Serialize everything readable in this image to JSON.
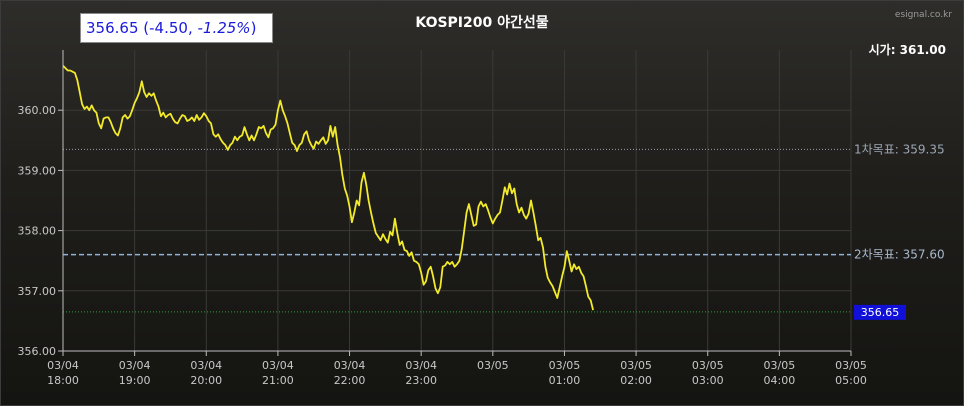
{
  "header": {
    "title": "KOSPI200 야간선물",
    "brand": "esignal.co.kr",
    "price": "356.65",
    "change": "-4.50",
    "change_pct": "-1.25%"
  },
  "chart_data": {
    "type": "line",
    "title": "KOSPI200 야간선물",
    "ylim": [
      356.0,
      361.0
    ],
    "y_ticks": [
      "356.00",
      "357.00",
      "358.00",
      "359.00",
      "360.00"
    ],
    "y_tick_values": [
      356.0,
      357.0,
      358.0,
      359.0,
      360.0
    ],
    "x_ticks": [
      {
        "date": "03/04",
        "time": "18:00",
        "t": 0
      },
      {
        "date": "03/04",
        "time": "19:00",
        "t": 60
      },
      {
        "date": "03/04",
        "time": "20:00",
        "t": 120
      },
      {
        "date": "03/04",
        "time": "21:00",
        "t": 180
      },
      {
        "date": "03/04",
        "time": "22:00",
        "t": 240
      },
      {
        "date": "03/04",
        "time": "23:00",
        "t": 300
      },
      {
        "date": "03/05",
        "time": "",
        "t": 360
      },
      {
        "date": "03/05",
        "time": "01:00",
        "t": 420
      },
      {
        "date": "03/05",
        "time": "02:00",
        "t": 480
      },
      {
        "date": "03/05",
        "time": "03:00",
        "t": 540
      },
      {
        "date": "03/05",
        "time": "04:00",
        "t": 600
      },
      {
        "date": "03/05",
        "time": "05:00",
        "t": 660
      }
    ],
    "reference_lines": [
      {
        "label": "시가: 361.00",
        "value": 361.0,
        "color": "#ffffff",
        "style": "none"
      },
      {
        "label": "1차목표: 359.35",
        "value": 359.35,
        "color": "#9aa0a6",
        "style": "dotted"
      },
      {
        "label": "2차목표: 357.60",
        "value": 357.6,
        "color": "#8fb0d8",
        "style": "dashed"
      },
      {
        "label": "356.65",
        "value": 356.65,
        "color": "#2e9a3a",
        "style": "dotted"
      }
    ],
    "last_value_label": "356.65",
    "series": [
      {
        "color": "#f2ea2a",
        "values": [
          [
            0,
            360.74
          ],
          [
            2,
            360.7
          ],
          [
            4,
            360.66
          ],
          [
            6,
            360.66
          ],
          [
            8,
            360.64
          ],
          [
            10,
            360.62
          ],
          [
            12,
            360.5
          ],
          [
            14,
            360.3
          ],
          [
            16,
            360.1
          ],
          [
            18,
            360.02
          ],
          [
            20,
            360.06
          ],
          [
            22,
            360.0
          ],
          [
            24,
            360.08
          ],
          [
            26,
            360.0
          ],
          [
            28,
            359.96
          ],
          [
            30,
            359.78
          ],
          [
            32,
            359.7
          ],
          [
            34,
            359.86
          ],
          [
            36,
            359.88
          ],
          [
            38,
            359.88
          ],
          [
            40,
            359.8
          ],
          [
            42,
            359.7
          ],
          [
            44,
            359.62
          ],
          [
            46,
            359.58
          ],
          [
            48,
            359.7
          ],
          [
            50,
            359.88
          ],
          [
            52,
            359.92
          ],
          [
            54,
            359.86
          ],
          [
            56,
            359.9
          ],
          [
            58,
            360.0
          ],
          [
            60,
            360.12
          ],
          [
            62,
            360.2
          ],
          [
            64,
            360.3
          ],
          [
            66,
            360.48
          ],
          [
            68,
            360.3
          ],
          [
            70,
            360.22
          ],
          [
            72,
            360.28
          ],
          [
            74,
            360.24
          ],
          [
            76,
            360.28
          ],
          [
            78,
            360.16
          ],
          [
            80,
            360.06
          ],
          [
            82,
            359.9
          ],
          [
            84,
            359.96
          ],
          [
            86,
            359.88
          ],
          [
            88,
            359.92
          ],
          [
            90,
            359.94
          ],
          [
            92,
            359.86
          ],
          [
            94,
            359.8
          ],
          [
            96,
            359.78
          ],
          [
            98,
            359.86
          ],
          [
            100,
            359.92
          ],
          [
            102,
            359.9
          ],
          [
            104,
            359.82
          ],
          [
            106,
            359.84
          ],
          [
            108,
            359.88
          ],
          [
            110,
            359.82
          ],
          [
            112,
            359.92
          ],
          [
            114,
            359.84
          ],
          [
            116,
            359.88
          ],
          [
            118,
            359.95
          ],
          [
            120,
            359.9
          ],
          [
            122,
            359.82
          ],
          [
            124,
            359.78
          ],
          [
            126,
            359.6
          ],
          [
            128,
            359.56
          ],
          [
            130,
            359.6
          ],
          [
            132,
            359.52
          ],
          [
            134,
            359.46
          ],
          [
            136,
            359.42
          ],
          [
            138,
            359.34
          ],
          [
            140,
            359.42
          ],
          [
            142,
            359.46
          ],
          [
            144,
            359.56
          ],
          [
            146,
            359.5
          ],
          [
            148,
            359.56
          ],
          [
            150,
            359.58
          ],
          [
            152,
            359.72
          ],
          [
            154,
            359.6
          ],
          [
            156,
            359.5
          ],
          [
            158,
            359.58
          ],
          [
            160,
            359.5
          ],
          [
            162,
            359.6
          ],
          [
            164,
            359.72
          ],
          [
            166,
            359.7
          ],
          [
            168,
            359.74
          ],
          [
            170,
            359.62
          ],
          [
            172,
            359.55
          ],
          [
            174,
            359.68
          ],
          [
            176,
            359.7
          ],
          [
            178,
            359.76
          ],
          [
            180,
            360.0
          ],
          [
            182,
            360.16
          ],
          [
            184,
            360.0
          ],
          [
            186,
            359.9
          ],
          [
            188,
            359.78
          ],
          [
            190,
            359.62
          ],
          [
            192,
            359.46
          ],
          [
            194,
            359.42
          ],
          [
            196,
            359.32
          ],
          [
            198,
            359.42
          ],
          [
            200,
            359.46
          ],
          [
            202,
            359.6
          ],
          [
            204,
            359.65
          ],
          [
            206,
            359.5
          ],
          [
            208,
            359.42
          ],
          [
            210,
            359.36
          ],
          [
            212,
            359.48
          ],
          [
            214,
            359.44
          ],
          [
            216,
            359.5
          ],
          [
            218,
            359.55
          ],
          [
            220,
            359.44
          ],
          [
            222,
            359.5
          ],
          [
            224,
            359.74
          ],
          [
            226,
            359.56
          ],
          [
            228,
            359.72
          ],
          [
            230,
            359.42
          ],
          [
            232,
            359.22
          ],
          [
            234,
            358.92
          ],
          [
            236,
            358.7
          ],
          [
            238,
            358.58
          ],
          [
            240,
            358.4
          ],
          [
            242,
            358.14
          ],
          [
            244,
            358.3
          ],
          [
            246,
            358.5
          ],
          [
            248,
            358.42
          ],
          [
            250,
            358.8
          ],
          [
            252,
            358.96
          ],
          [
            254,
            358.76
          ],
          [
            256,
            358.5
          ],
          [
            258,
            358.3
          ],
          [
            260,
            358.12
          ],
          [
            262,
            357.96
          ],
          [
            264,
            357.9
          ],
          [
            266,
            357.84
          ],
          [
            268,
            357.94
          ],
          [
            270,
            357.86
          ],
          [
            272,
            357.8
          ],
          [
            274,
            357.98
          ],
          [
            276,
            357.92
          ],
          [
            278,
            358.2
          ],
          [
            280,
            357.96
          ],
          [
            282,
            357.76
          ],
          [
            284,
            357.82
          ],
          [
            286,
            357.68
          ],
          [
            288,
            357.66
          ],
          [
            290,
            357.58
          ],
          [
            292,
            357.64
          ],
          [
            294,
            357.5
          ],
          [
            296,
            357.48
          ],
          [
            298,
            357.44
          ],
          [
            300,
            357.3
          ],
          [
            302,
            357.1
          ],
          [
            304,
            357.16
          ],
          [
            306,
            357.34
          ],
          [
            308,
            357.4
          ],
          [
            310,
            357.24
          ],
          [
            312,
            357.04
          ],
          [
            314,
            356.96
          ],
          [
            316,
            357.06
          ],
          [
            318,
            357.4
          ],
          [
            320,
            357.42
          ],
          [
            322,
            357.48
          ],
          [
            324,
            357.44
          ],
          [
            326,
            357.48
          ],
          [
            328,
            357.4
          ],
          [
            330,
            357.44
          ],
          [
            332,
            357.5
          ],
          [
            334,
            357.7
          ],
          [
            336,
            358.0
          ],
          [
            338,
            358.3
          ],
          [
            340,
            358.44
          ],
          [
            342,
            358.26
          ],
          [
            344,
            358.08
          ],
          [
            346,
            358.1
          ],
          [
            348,
            358.4
          ],
          [
            350,
            358.48
          ],
          [
            352,
            358.4
          ],
          [
            354,
            358.44
          ],
          [
            356,
            358.34
          ],
          [
            358,
            358.22
          ],
          [
            360,
            358.12
          ],
          [
            362,
            358.2
          ],
          [
            364,
            358.26
          ],
          [
            366,
            358.3
          ],
          [
            368,
            358.5
          ],
          [
            370,
            358.72
          ],
          [
            372,
            358.6
          ],
          [
            374,
            358.78
          ],
          [
            376,
            358.62
          ],
          [
            378,
            358.7
          ],
          [
            380,
            358.44
          ],
          [
            382,
            358.3
          ],
          [
            384,
            358.38
          ],
          [
            386,
            358.26
          ],
          [
            388,
            358.2
          ],
          [
            390,
            358.28
          ],
          [
            392,
            358.5
          ],
          [
            394,
            358.3
          ],
          [
            396,
            358.08
          ],
          [
            398,
            357.84
          ],
          [
            400,
            357.88
          ],
          [
            402,
            357.72
          ],
          [
            404,
            357.4
          ],
          [
            406,
            357.22
          ],
          [
            408,
            357.14
          ],
          [
            410,
            357.08
          ],
          [
            412,
            356.98
          ],
          [
            414,
            356.88
          ],
          [
            416,
            357.06
          ],
          [
            418,
            357.24
          ],
          [
            420,
            357.4
          ],
          [
            422,
            357.66
          ],
          [
            424,
            357.5
          ],
          [
            426,
            357.32
          ],
          [
            428,
            357.44
          ],
          [
            430,
            357.36
          ],
          [
            432,
            357.4
          ],
          [
            434,
            357.3
          ],
          [
            436,
            357.24
          ],
          [
            438,
            357.08
          ],
          [
            440,
            356.9
          ],
          [
            442,
            356.84
          ],
          [
            444,
            356.68
          ]
        ]
      }
    ]
  }
}
